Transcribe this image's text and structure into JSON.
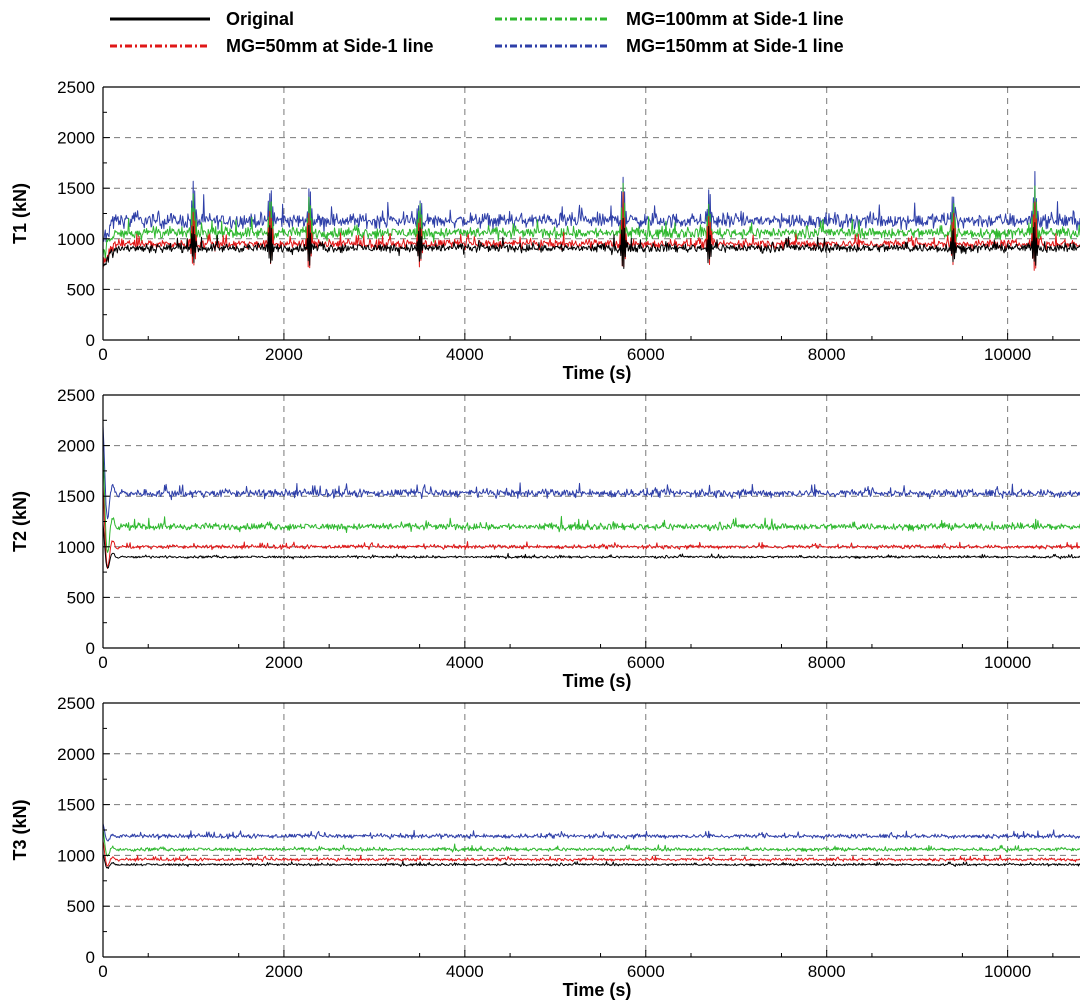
{
  "legend": {
    "entries": [
      {
        "label": "Original",
        "color": "#000000",
        "dash": "solid"
      },
      {
        "label": "MG=50mm at Side-1 line",
        "color": "#e01818",
        "dash": "dashdot"
      },
      {
        "label": "MG=100mm at Side-1 line",
        "color": "#2fb82f",
        "dash": "dashdot"
      },
      {
        "label": "MG=150mm at Side-1 line",
        "color": "#2e3fa8",
        "dash": "dashdot"
      }
    ]
  },
  "chart_data": [
    {
      "type": "line",
      "ylabel": "T1 (kN)",
      "xlabel": "Time (s)",
      "xlim": [
        0,
        10800
      ],
      "ylim": [
        0,
        2500
      ],
      "xticks": [
        "0",
        "2000",
        "4000",
        "6000",
        "8000",
        "10000"
      ],
      "yticks": [
        "0",
        "500",
        "1000",
        "1500",
        "2000",
        "2500"
      ],
      "grid": true,
      "series": [
        {
          "name": "Original",
          "x": [
            0,
            2000,
            4000,
            6000,
            8000,
            10000,
            10800
          ],
          "y": [
            910,
            910,
            910,
            910,
            910,
            910,
            910
          ],
          "approx_noise": 45
        },
        {
          "name": "MG=50mm at Side-1 line",
          "x": [
            0,
            2000,
            4000,
            6000,
            8000,
            10000,
            10800
          ],
          "y": [
            950,
            950,
            950,
            950,
            950,
            950,
            950
          ],
          "approx_noise": 45
        },
        {
          "name": "MG=100mm at Side-1 line",
          "x": [
            0,
            2000,
            4000,
            6000,
            8000,
            10000,
            10800
          ],
          "y": [
            1060,
            1060,
            1060,
            1060,
            1060,
            1060,
            1060
          ],
          "approx_noise": 55
        },
        {
          "name": "MG=150mm at Side-1 line",
          "x": [
            0,
            2000,
            4000,
            6000,
            8000,
            10000,
            10800
          ],
          "y": [
            1180,
            1180,
            1180,
            1180,
            1180,
            1180,
            1180
          ],
          "approx_noise": 75
        }
      ],
      "spikes": [
        {
          "x": 1000,
          "y": 1600
        },
        {
          "x": 1850,
          "y": 1580
        },
        {
          "x": 2280,
          "y": 1560
        },
        {
          "x": 3500,
          "y": 1500
        },
        {
          "x": 5750,
          "y": 1700
        },
        {
          "x": 6700,
          "y": 1500
        },
        {
          "x": 9400,
          "y": 1500
        },
        {
          "x": 10300,
          "y": 1680
        }
      ]
    },
    {
      "type": "line",
      "ylabel": "T2 (kN)",
      "xlabel": "Time (s)",
      "xlim": [
        0,
        10800
      ],
      "ylim": [
        0,
        2500
      ],
      "xticks": [
        "0",
        "2000",
        "4000",
        "6000",
        "8000",
        "10000"
      ],
      "yticks": [
        "0",
        "500",
        "1000",
        "1500",
        "2000",
        "2500"
      ],
      "grid": true,
      "series": [
        {
          "name": "Original",
          "x": [
            0,
            2000,
            4000,
            6000,
            8000,
            10000,
            10800
          ],
          "y": [
            900,
            900,
            900,
            900,
            900,
            900,
            900
          ],
          "approx_noise": 12
        },
        {
          "name": "MG=50mm at Side-1 line",
          "x": [
            0,
            2000,
            4000,
            6000,
            8000,
            10000,
            10800
          ],
          "y": [
            1000,
            1000,
            1000,
            1000,
            1000,
            1000,
            1000
          ],
          "approx_noise": 20
        },
        {
          "name": "MG=100mm at Side-1 line",
          "x": [
            0,
            2000,
            4000,
            6000,
            8000,
            10000,
            10800
          ],
          "y": [
            1200,
            1200,
            1200,
            1200,
            1200,
            1200,
            1200
          ],
          "approx_noise": 35
        },
        {
          "name": "MG=150mm at Side-1 line",
          "x": [
            0,
            2000,
            4000,
            6000,
            8000,
            10000,
            10800
          ],
          "y": [
            1530,
            1530,
            1530,
            1530,
            1530,
            1530,
            1530
          ],
          "approx_noise": 40
        }
      ],
      "initial_peak": {
        "x": 20,
        "y": 2200
      }
    },
    {
      "type": "line",
      "ylabel": "T3 (kN)",
      "xlabel": "Time (s)",
      "xlim": [
        0,
        10800
      ],
      "ylim": [
        0,
        2500
      ],
      "xticks": [
        "0",
        "2000",
        "4000",
        "6000",
        "8000",
        "10000"
      ],
      "yticks": [
        "0",
        "500",
        "1000",
        "1500",
        "2000",
        "2500"
      ],
      "grid": true,
      "series": [
        {
          "name": "Original",
          "x": [
            0,
            2000,
            4000,
            6000,
            8000,
            10000,
            10800
          ],
          "y": [
            910,
            910,
            910,
            910,
            910,
            910,
            910
          ],
          "approx_noise": 12
        },
        {
          "name": "MG=50mm at Side-1 line",
          "x": [
            0,
            2000,
            4000,
            6000,
            8000,
            10000,
            10800
          ],
          "y": [
            960,
            960,
            960,
            960,
            960,
            960,
            960
          ],
          "approx_noise": 15
        },
        {
          "name": "MG=100mm at Side-1 line",
          "x": [
            0,
            2000,
            4000,
            6000,
            8000,
            10000,
            10800
          ],
          "y": [
            1060,
            1060,
            1060,
            1060,
            1060,
            1060,
            1060
          ],
          "approx_noise": 18
        },
        {
          "name": "MG=150mm at Side-1 line",
          "x": [
            0,
            2000,
            4000,
            6000,
            8000,
            10000,
            10800
          ],
          "y": [
            1190,
            1190,
            1190,
            1190,
            1190,
            1190,
            1190
          ],
          "approx_noise": 22
        }
      ],
      "initial_peak": {
        "x": 20,
        "y": 1320
      }
    }
  ]
}
